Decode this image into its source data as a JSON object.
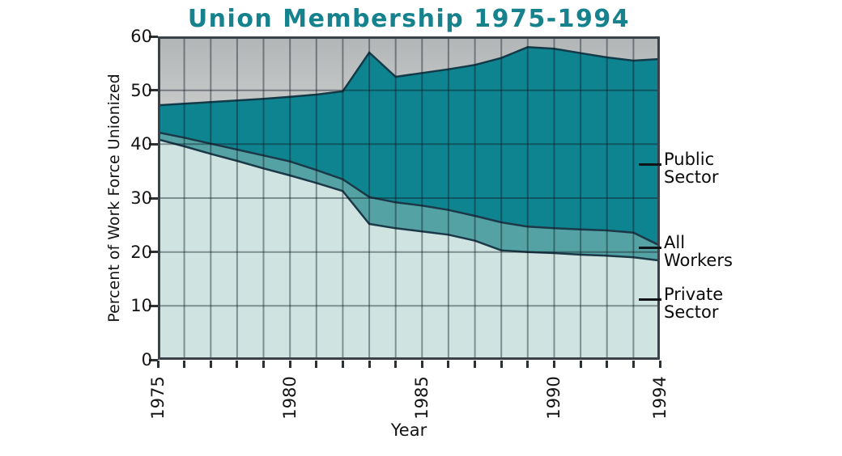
{
  "chart_data": {
    "type": "area",
    "title": "Union Membership 1975-1994",
    "xlabel": "Year",
    "ylabel": "Percent of Work Force Unionized",
    "x": [
      1975,
      1976,
      1977,
      1978,
      1979,
      1980,
      1981,
      1982,
      1983,
      1984,
      1985,
      1986,
      1987,
      1988,
      1989,
      1990,
      1991,
      1992,
      1993,
      1994
    ],
    "xticks": [
      1975,
      1980,
      1985,
      1990,
      1994
    ],
    "ylim": [
      0,
      60
    ],
    "yticks": [
      0,
      10,
      20,
      30,
      40,
      50,
      60
    ],
    "grid": "vertical line every year, horizontal line every 10 units",
    "legend_position": "right-side area labels with leader dashes",
    "plot_bg_top_color": "#b2b5b6",
    "plot_bg_bottom_color": "#e0e2e1",
    "grid_color": "rgba(15,25,35,0.42)",
    "frame_color": "#3b4148",
    "series": [
      {
        "name": "Public Sector",
        "fill": "#0e8490",
        "line_color": "#123a48",
        "values": [
          47.2,
          47.5,
          47.8,
          48.1,
          48.4,
          48.8,
          49.2,
          49.8,
          57.0,
          52.5,
          53.2,
          53.9,
          54.7,
          56.0,
          58.0,
          57.7,
          56.9,
          56.1,
          55.5,
          55.8
        ]
      },
      {
        "name": "All Workers",
        "fill": "#54a2a3",
        "line_color": "#1b3948",
        "values": [
          42.2,
          41.2,
          40.1,
          39.0,
          37.9,
          36.8,
          35.2,
          33.5,
          30.2,
          29.2,
          28.6,
          27.8,
          26.7,
          25.5,
          24.7,
          24.4,
          24.2,
          24.0,
          23.6,
          21.2
        ]
      },
      {
        "name": "Private Sector",
        "fill": "#cfe4e0",
        "line_color": "#1b3948",
        "values": [
          40.9,
          39.6,
          38.2,
          36.9,
          35.5,
          34.2,
          32.8,
          31.3,
          25.2,
          24.4,
          23.8,
          23.2,
          22.1,
          20.3,
          20.0,
          19.8,
          19.5,
          19.3,
          19.0,
          18.4
        ]
      }
    ],
    "annotations": [
      {
        "lines": [
          "Public",
          "Sector"
        ],
        "marker_value": 36.3
      },
      {
        "lines": [
          "All",
          "Workers"
        ],
        "marker_value": 20.8
      },
      {
        "lines": [
          "Private",
          "Sector"
        ],
        "marker_value": 11.2
      }
    ]
  }
}
